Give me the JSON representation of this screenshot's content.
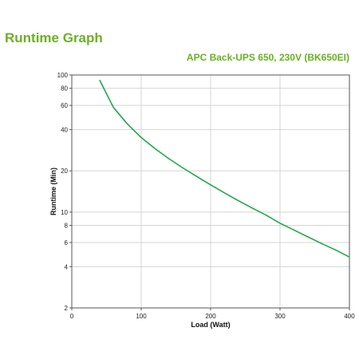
{
  "header": {
    "title": "Runtime Graph",
    "subtitle": "APC Back-UPS 650, 230V (BK650EI)"
  },
  "chart_data": {
    "type": "line",
    "title": "Runtime Graph",
    "subtitle": "APC Back-UPS 650, 230V (BK650EI)",
    "xlabel": "Load (Watt)",
    "ylabel": "Runtime (Min)",
    "xlim": [
      0,
      400
    ],
    "ylim": [
      2,
      100
    ],
    "yscale": "log",
    "grid": true,
    "x_ticks": [
      0,
      100,
      200,
      300,
      400
    ],
    "y_ticks": [
      2,
      4,
      6,
      8,
      10,
      20,
      40,
      60,
      80,
      100
    ],
    "series": [
      {
        "color": "#1ea84b",
        "x": [
          40,
          60,
          80,
          100,
          120,
          140,
          160,
          180,
          200,
          220,
          240,
          260,
          280,
          300,
          320,
          340,
          360,
          380,
          400
        ],
        "y": [
          92,
          58,
          44,
          35,
          29,
          24.5,
          21,
          18.2,
          15.8,
          13.8,
          12.1,
          10.7,
          9.5,
          8.3,
          7.4,
          6.6,
          5.9,
          5.3,
          4.7
        ]
      }
    ]
  }
}
